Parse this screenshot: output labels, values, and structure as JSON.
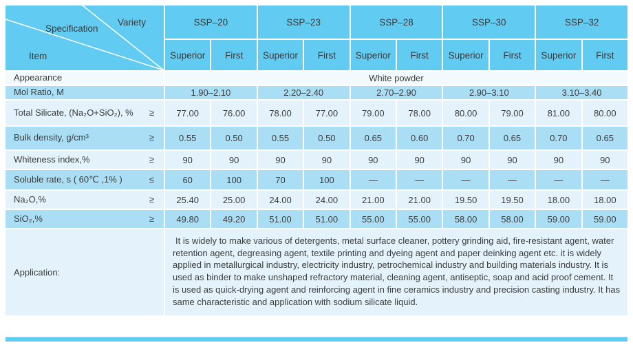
{
  "table": {
    "corner": {
      "specification": "Specification",
      "variety": "Variety",
      "item": "Item"
    },
    "products": [
      "SSP–20",
      "SSP–23",
      "SSP–28",
      "SSP–30",
      "SSP–32"
    ],
    "grades": [
      "Superior",
      "First"
    ],
    "rows": [
      {
        "id": "appearance",
        "label": "Appearance",
        "op": "",
        "kind": "merged",
        "merged": "White  powder"
      },
      {
        "id": "mol-ratio",
        "label": "Mol Ratio, M",
        "op": "",
        "kind": "pairs",
        "pairs": [
          "1.90–2.10",
          "2.20–2.40",
          "2.70–2.90",
          "2.90–3.10",
          "3.10–3.40"
        ]
      },
      {
        "id": "total-silicate",
        "label": "Total Silicate, (Na₂O+SiO₂), %",
        "op": "≥",
        "kind": "values",
        "values": [
          "77.00",
          "76.00",
          "78.00",
          "77.00",
          "79.00",
          "78.00",
          "80.00",
          "79.00",
          "81.00",
          "80.00"
        ]
      },
      {
        "id": "bulk-density",
        "label": "Bulk density, g/cm³",
        "op": "≥",
        "kind": "values",
        "values": [
          "0.55",
          "0.50",
          "0.55",
          "0.50",
          "0.65",
          "0.60",
          "0.70",
          "0.65",
          "0.70",
          "0.65"
        ]
      },
      {
        "id": "whiteness-index",
        "label": "Whiteness index,%",
        "op": "≥",
        "kind": "values",
        "values": [
          "90",
          "90",
          "90",
          "90",
          "90",
          "90",
          "90",
          "90",
          "90",
          "90"
        ]
      },
      {
        "id": "soluble-rate",
        "label": "Soluble rate, s ( 60℃ ,1% )",
        "op": "≤",
        "kind": "values",
        "values": [
          "60",
          "100",
          "70",
          "100",
          "—",
          "—",
          "—",
          "—",
          "—",
          "—"
        ]
      },
      {
        "id": "na2o",
        "label": "Na₂O,%",
        "op": "≥",
        "kind": "values",
        "values": [
          "25.40",
          "25.00",
          "24.00",
          "24.00",
          "21.00",
          "21.00",
          "19.50",
          "19.50",
          "18.00",
          "18.00"
        ]
      },
      {
        "id": "sio2",
        "label": "SiO₂,%",
        "op": "≥",
        "kind": "values",
        "values": [
          "49.80",
          "49.20",
          "51.00",
          "51.00",
          "55.00",
          "55.00",
          "58.00",
          "58.00",
          "59.00",
          "59.00"
        ]
      }
    ],
    "application": {
      "label": "Application:",
      "text": "It is widely to make various of detergents, metal surface cleaner, pottery grinding aid, fire-resistant agent, water retention agent, degreasing agent, textile printing and dyeing agent and paper deinking agent etc. it is widely applied in metallurgical industry, electricity industry, petrochemical industry and building materials industry. It is used as binder to make unshaped refractory material, cleaning agent, antiseptic, soap and acid proof cement. It is used as quick-drying agent and reinforcing agent in fine ceramics industry and precision casting industry. It has same characteristic and application with sodium silicate liquid."
    }
  },
  "colors": {
    "header_blue": "#62cbf1",
    "row_medium_blue": "#aadef5",
    "row_light_blue": "#e3f2fb",
    "row_extra_light": "#f2fafd",
    "bottom_bar_blue": "#5ecdf2",
    "text": "#3c3c3c"
  }
}
